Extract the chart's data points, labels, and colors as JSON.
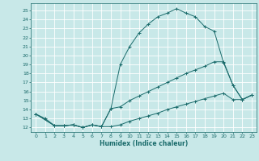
{
  "xlabel": "Humidex (Indice chaleur)",
  "bg_color": "#c8e8e8",
  "grid_color": "#ffffff",
  "line_color": "#1a6b6b",
  "xlim": [
    -0.5,
    23.5
  ],
  "ylim": [
    11.5,
    25.8
  ],
  "xticks": [
    0,
    1,
    2,
    3,
    4,
    5,
    6,
    7,
    8,
    9,
    10,
    11,
    12,
    13,
    14,
    15,
    16,
    17,
    18,
    19,
    20,
    21,
    22,
    23
  ],
  "yticks": [
    12,
    13,
    14,
    15,
    16,
    17,
    18,
    19,
    20,
    21,
    22,
    23,
    24,
    25
  ],
  "curve1_x": [
    0,
    1,
    2,
    3,
    4,
    5,
    6,
    7,
    8,
    9,
    10,
    11,
    12,
    13,
    14,
    15,
    16,
    17,
    18,
    19,
    20,
    21,
    22,
    23
  ],
  "curve1_y": [
    13.5,
    13.0,
    12.2,
    12.2,
    12.3,
    12.0,
    12.3,
    12.1,
    14.1,
    19.0,
    21.0,
    22.5,
    23.5,
    24.3,
    24.7,
    25.2,
    24.7,
    24.3,
    23.2,
    22.7,
    19.2,
    16.7,
    15.1,
    15.6
  ],
  "curve2_x": [
    0,
    2,
    3,
    4,
    5,
    6,
    7,
    8,
    9,
    10,
    11,
    12,
    13,
    14,
    15,
    16,
    17,
    18,
    19,
    20,
    21,
    22,
    23
  ],
  "curve2_y": [
    13.5,
    12.2,
    12.2,
    12.3,
    12.0,
    12.3,
    12.1,
    14.1,
    14.3,
    15.0,
    15.5,
    16.0,
    16.5,
    17.0,
    17.5,
    18.0,
    18.4,
    18.8,
    19.3,
    19.3,
    16.7,
    15.1,
    15.6
  ],
  "curve3_x": [
    0,
    2,
    3,
    4,
    5,
    6,
    7,
    8,
    9,
    10,
    11,
    12,
    13,
    14,
    15,
    16,
    17,
    18,
    19,
    20,
    21,
    22,
    23
  ],
  "curve3_y": [
    13.5,
    12.2,
    12.2,
    12.3,
    12.0,
    12.3,
    12.1,
    12.1,
    12.3,
    12.7,
    13.0,
    13.3,
    13.6,
    14.0,
    14.3,
    14.6,
    14.9,
    15.2,
    15.5,
    15.8,
    15.1,
    15.1,
    15.6
  ]
}
